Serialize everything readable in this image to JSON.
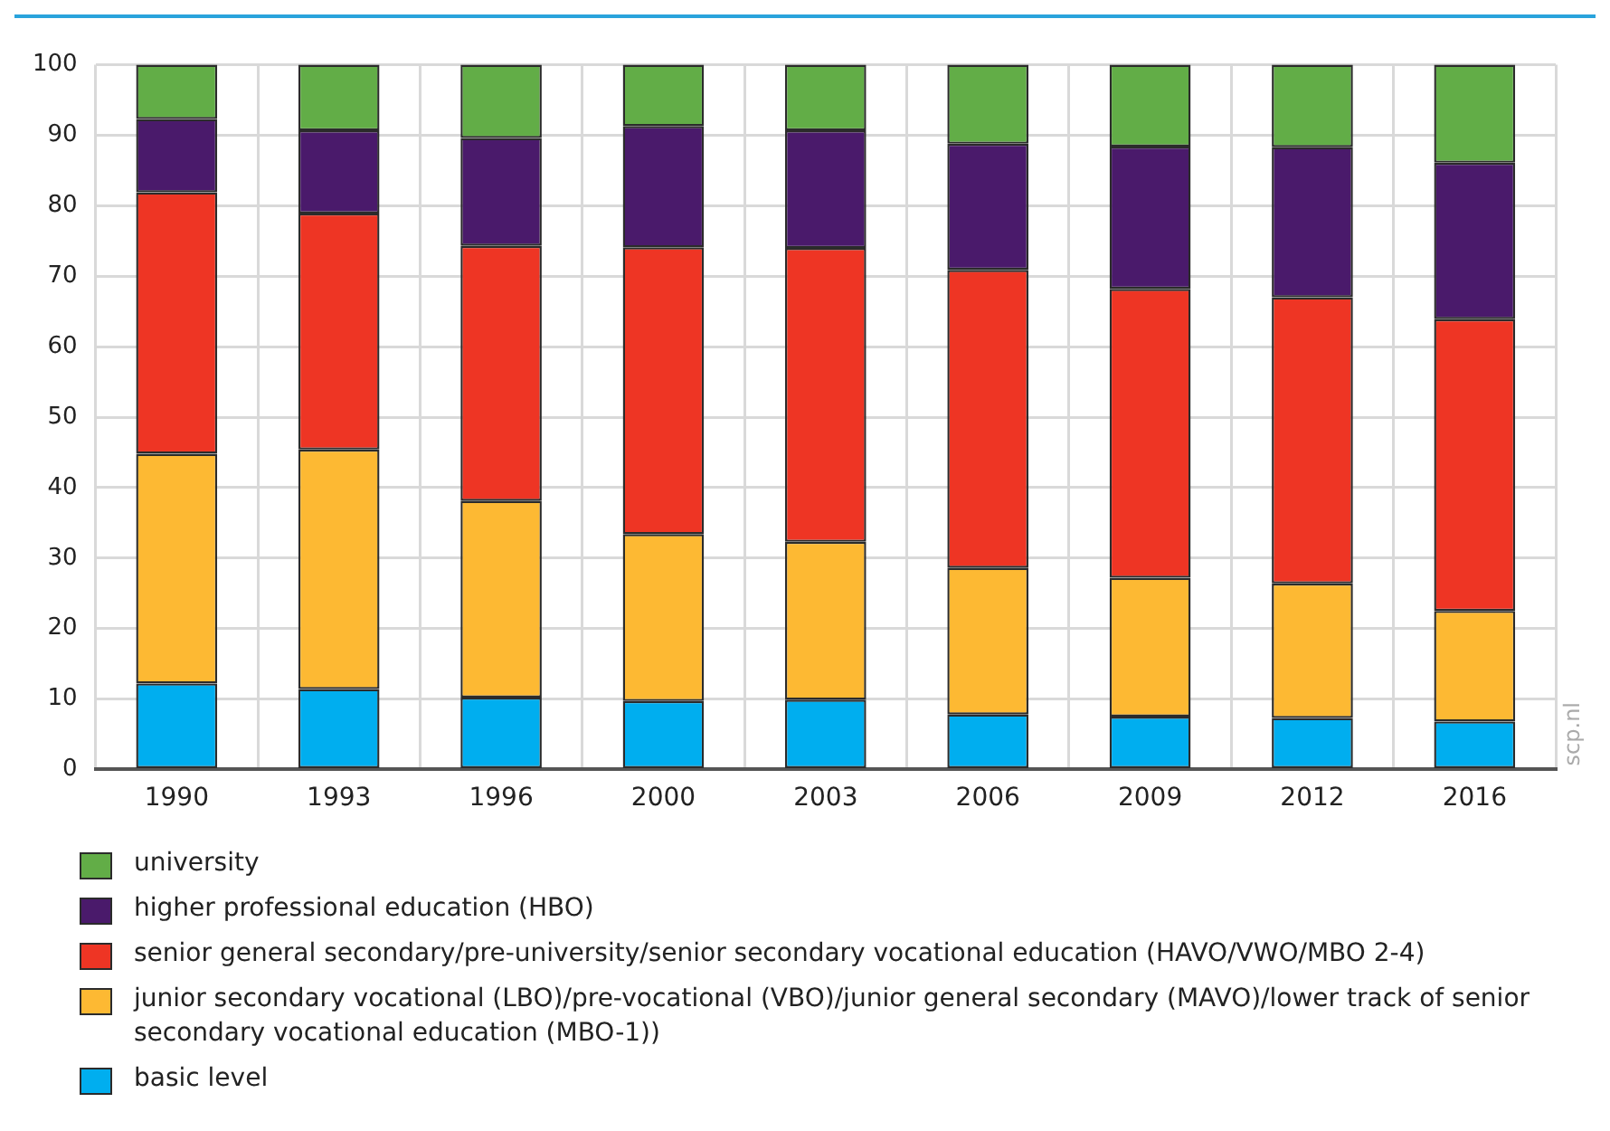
{
  "chart_data": {
    "type": "bar",
    "stacked": true,
    "categories": [
      "1990",
      "1993",
      "1996",
      "2000",
      "2003",
      "2006",
      "2009",
      "2012",
      "2016"
    ],
    "series": [
      {
        "name": "basic level",
        "color": "#00aeef",
        "values": [
          12.2,
          11.4,
          10.2,
          9.7,
          9.9,
          7.8,
          7.5,
          7.3,
          6.8
        ]
      },
      {
        "name": "junior secondary vocational (LBO)/pre-vocational (VBO)/junior general secondary (MAVO)/lower track of senior secondary vocational education (MBO-1))",
        "color": "#fdb933",
        "values": [
          32.6,
          34.0,
          27.9,
          23.7,
          22.4,
          20.8,
          19.7,
          19.1,
          15.7
        ]
      },
      {
        "name": "senior general secondary/pre-university/senior secondary vocational education (HAVO/VWO/MBO 2-4)",
        "color": "#ee3524",
        "values": [
          37.1,
          33.5,
          36.2,
          40.7,
          41.7,
          42.3,
          41.0,
          40.6,
          41.4
        ]
      },
      {
        "name": "higher professional education (HBO)",
        "color": "#4a1a6b",
        "values": [
          10.4,
          11.8,
          15.3,
          17.2,
          16.7,
          17.9,
          20.2,
          21.3,
          22.2
        ]
      },
      {
        "name": "university",
        "color": "#62ad47",
        "values": [
          7.7,
          9.3,
          10.4,
          8.7,
          9.3,
          11.2,
          11.6,
          11.7,
          13.9
        ]
      }
    ],
    "ylim": [
      0,
      100
    ],
    "yticks": [
      0,
      10,
      20,
      30,
      40,
      50,
      60,
      70,
      80,
      90,
      100
    ],
    "grid": true,
    "legend": "bottom",
    "annotations": [
      "scp.nl"
    ]
  }
}
